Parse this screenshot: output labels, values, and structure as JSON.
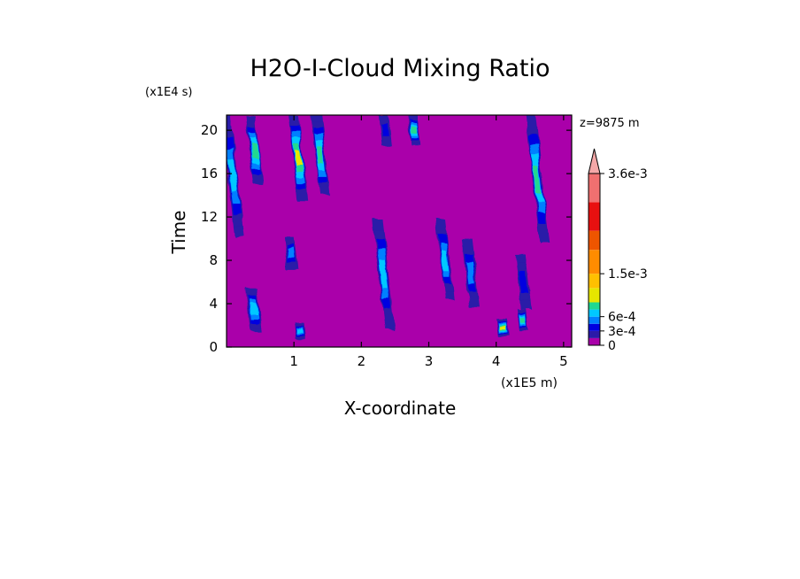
{
  "chart_data": {
    "type": "heatmap",
    "title": "H2O-I-Cloud Mixing Ratio",
    "xlabel": "X-coordinate",
    "ylabel": "Time",
    "x_multiplier": "(x1E5 m)",
    "y_multiplier": "(x1E4 s)",
    "level_annotation": "z=9875 m",
    "xlim": [
      0,
      5.12
    ],
    "ylim": [
      0,
      21.4
    ],
    "x_ticks": [
      1,
      2,
      3,
      4,
      5
    ],
    "x_tick_labels": [
      "1",
      "2",
      "3",
      "4",
      "5"
    ],
    "y_ticks": [
      0,
      4,
      8,
      12,
      16,
      20
    ],
    "y_tick_labels": [
      "0",
      "4",
      "8",
      "12",
      "16",
      "20"
    ],
    "colorbar": {
      "levels": [
        0,
        0.00015,
        0.0003,
        0.00045,
        0.0006,
        0.00075,
        0.0009,
        0.0012,
        0.0015,
        0.002,
        0.0024,
        0.003,
        0.0036
      ],
      "colors": [
        "#aa00aa",
        "#2b1aa8",
        "#0000e0",
        "#0080ff",
        "#00c8ff",
        "#20d890",
        "#e6e600",
        "#ffc000",
        "#ff8c00",
        "#ee5500",
        "#e81010",
        "#f07070",
        "#f4a8a8"
      ],
      "extend_max": true,
      "tick_values": [
        0,
        0.0003,
        0.0006,
        0.0015,
        0.0036
      ],
      "tick_labels": [
        "0",
        "3e-4",
        "6e-4",
        "1.5e-3",
        "3.6e-3"
      ]
    },
    "background_value": 0,
    "features": [
      {
        "x": 0.19,
        "y0": 10.2,
        "y1": 21.4,
        "peak": 0.0006
      },
      {
        "x": 0.47,
        "y0": 15.0,
        "y1": 21.3,
        "peak": 0.00075
      },
      {
        "x": 0.44,
        "y0": 1.5,
        "y1": 5.5,
        "peak": 0.0006
      },
      {
        "x": 0.98,
        "y0": 7.2,
        "y1": 10.2,
        "peak": 0.00045
      },
      {
        "x": 1.13,
        "y0": 13.5,
        "y1": 21.4,
        "peak": 0.0009
      },
      {
        "x": 1.46,
        "y0": 14.0,
        "y1": 21.4,
        "peak": 0.00075
      },
      {
        "x": 1.1,
        "y0": 0.8,
        "y1": 2.2,
        "peak": 0.0006
      },
      {
        "x": 2.42,
        "y0": 1.6,
        "y1": 11.8,
        "peak": 0.0006
      },
      {
        "x": 2.38,
        "y0": 18.6,
        "y1": 21.4,
        "peak": 0.0003
      },
      {
        "x": 2.81,
        "y0": 18.6,
        "y1": 21.4,
        "peak": 0.00075
      },
      {
        "x": 3.31,
        "y0": 4.3,
        "y1": 11.8,
        "peak": 0.0006
      },
      {
        "x": 3.68,
        "y0": 3.6,
        "y1": 10.0,
        "peak": 0.00045
      },
      {
        "x": 4.11,
        "y0": 1.0,
        "y1": 2.6,
        "peak": 0.0009
      },
      {
        "x": 4.42,
        "y0": 1.5,
        "y1": 3.5,
        "peak": 0.00075
      },
      {
        "x": 4.72,
        "y0": 9.6,
        "y1": 21.4,
        "peak": 0.00075
      },
      {
        "x": 4.45,
        "y0": 3.5,
        "y1": 8.5,
        "peak": 0.0003
      }
    ]
  }
}
